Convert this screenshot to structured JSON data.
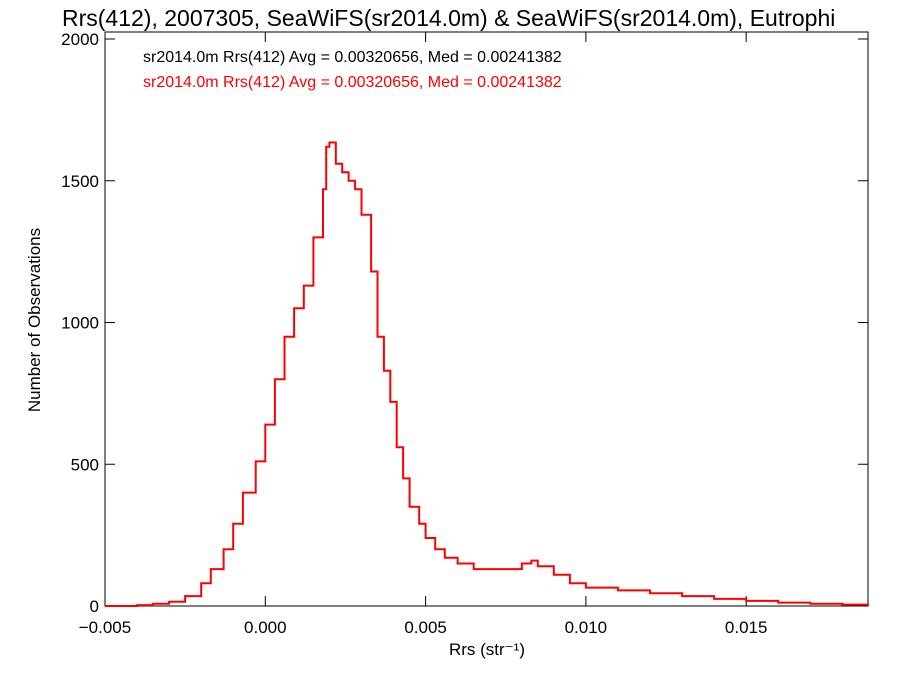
{
  "chart_data": {
    "type": "histogram-step",
    "title": "Rrs(412), 2007305, SeaWiFS(sr2014.0m) & SeaWiFS(sr2014.0m), Eutrophi",
    "xlabel": "Rrs (str⁻¹)",
    "ylabel": "Number of Observations",
    "xlim": [
      -0.005,
      0.0188
    ],
    "ylim": [
      0,
      2000
    ],
    "x_ticks": [
      -0.005,
      0.0,
      0.005,
      0.01,
      0.015
    ],
    "x_tick_labels": [
      "−0.005",
      "0.000",
      "0.005",
      "0.010",
      "0.015"
    ],
    "y_ticks": [
      0,
      500,
      1000,
      1500,
      2000
    ],
    "y_tick_labels": [
      "0",
      "500",
      "1000",
      "1500",
      "2000"
    ],
    "grid": false,
    "legend_placement": "top-left",
    "legend": [
      {
        "text": "sr2014.0m Rrs(412) Avg = 0.00320656, Med = 0.00241382",
        "color": "#000000"
      },
      {
        "text": "sr2014.0m Rrs(412) Avg = 0.00320656, Med = 0.00241382",
        "color": "#ff0000"
      }
    ],
    "series": [
      {
        "color": "#ff0000",
        "points": [
          [
            -0.005,
            0
          ],
          [
            -0.004,
            3
          ],
          [
            -0.0035,
            8
          ],
          [
            -0.003,
            15
          ],
          [
            -0.0025,
            35
          ],
          [
            -0.002,
            80
          ],
          [
            -0.0017,
            130
          ],
          [
            -0.0013,
            200
          ],
          [
            -0.001,
            290
          ],
          [
            -0.0007,
            400
          ],
          [
            -0.0003,
            510
          ],
          [
            0.0,
            640
          ],
          [
            0.0003,
            800
          ],
          [
            0.0006,
            950
          ],
          [
            0.0009,
            1050
          ],
          [
            0.0012,
            1130
          ],
          [
            0.0015,
            1300
          ],
          [
            0.0018,
            1470
          ],
          [
            0.0019,
            1620
          ],
          [
            0.002,
            1635
          ],
          [
            0.0022,
            1560
          ],
          [
            0.0024,
            1530
          ],
          [
            0.0026,
            1500
          ],
          [
            0.0028,
            1470
          ],
          [
            0.003,
            1380
          ],
          [
            0.0033,
            1180
          ],
          [
            0.0035,
            950
          ],
          [
            0.0037,
            830
          ],
          [
            0.0039,
            720
          ],
          [
            0.0041,
            560
          ],
          [
            0.0043,
            450
          ],
          [
            0.0045,
            350
          ],
          [
            0.0048,
            290
          ],
          [
            0.005,
            240
          ],
          [
            0.0053,
            200
          ],
          [
            0.0056,
            170
          ],
          [
            0.006,
            150
          ],
          [
            0.0065,
            130
          ],
          [
            0.007,
            130
          ],
          [
            0.0075,
            130
          ],
          [
            0.008,
            150
          ],
          [
            0.0083,
            160
          ],
          [
            0.0085,
            140
          ],
          [
            0.009,
            110
          ],
          [
            0.0095,
            80
          ],
          [
            0.01,
            65
          ],
          [
            0.011,
            55
          ],
          [
            0.012,
            45
          ],
          [
            0.013,
            35
          ],
          [
            0.014,
            25
          ],
          [
            0.015,
            18
          ],
          [
            0.016,
            12
          ],
          [
            0.017,
            8
          ],
          [
            0.018,
            5
          ],
          [
            0.0188,
            3
          ]
        ]
      }
    ]
  }
}
